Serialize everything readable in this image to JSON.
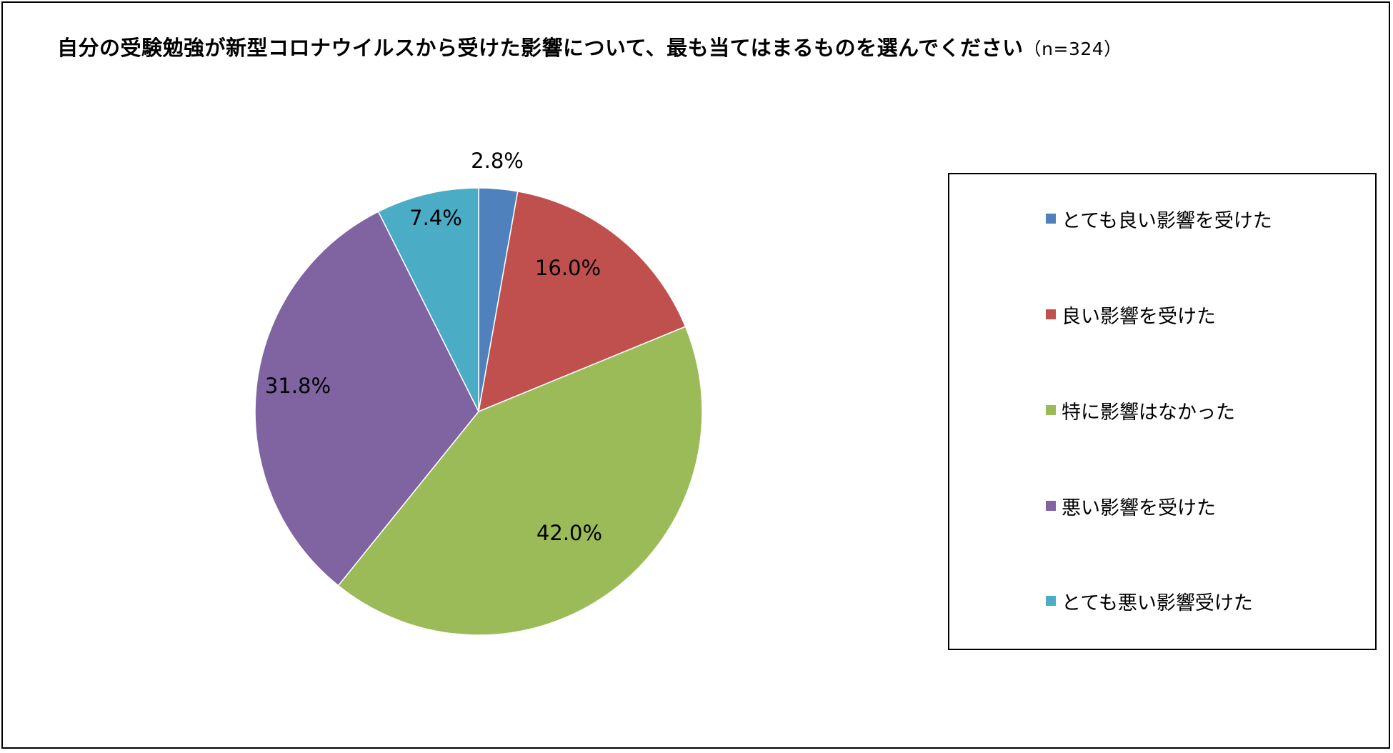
{
  "chart_data": {
    "type": "pie",
    "title": "自分の受験勉強が新型コロナウイルスから受けた影響について、最も当てはまるものを選んでください",
    "sample": "（n=324）",
    "legend_position": "right",
    "slices": [
      {
        "label": "とても良い影響を受けた",
        "value": 2.8,
        "value_label": "2.8%",
        "color": "#4F81BD"
      },
      {
        "label": "良い影響を受けた",
        "value": 16.0,
        "value_label": "16.0%",
        "color": "#C0504D"
      },
      {
        "label": "特に影響はなかった",
        "value": 42.0,
        "value_label": "42.0%",
        "color": "#9BBB59"
      },
      {
        "label": "悪い影響を受けた",
        "value": 31.8,
        "value_label": "31.8%",
        "color": "#8064A2"
      },
      {
        "label": "とても悪い影響受けた",
        "value": 7.4,
        "value_label": "7.4%",
        "color": "#4BACC6"
      }
    ]
  }
}
